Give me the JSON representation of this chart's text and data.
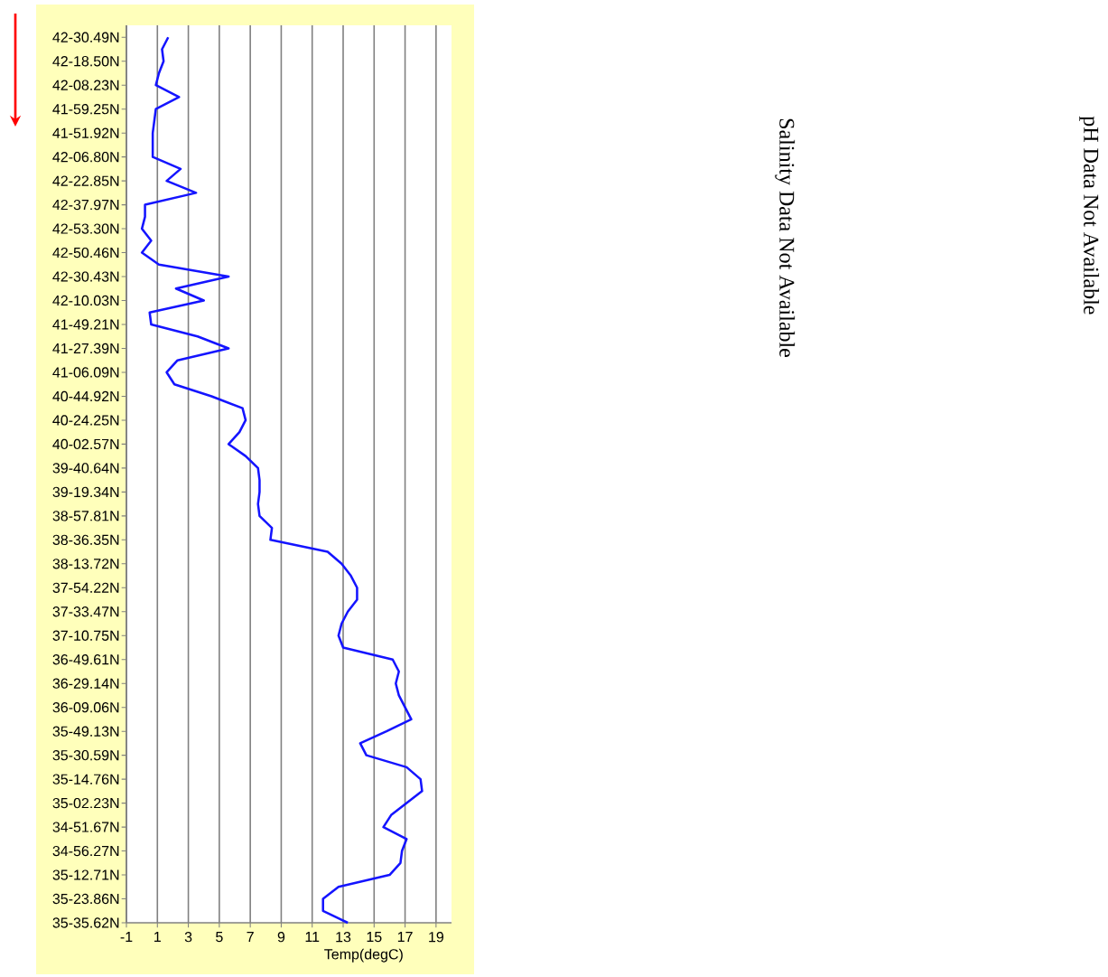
{
  "chart_data": {
    "type": "line",
    "orientation": "horizontal",
    "xlabel": "Temp(degC)",
    "grid": "x",
    "marker": "none",
    "categories": [
      "42-30.49N",
      null,
      "42-18.50N",
      null,
      "42-08.23N",
      null,
      "41-59.25N",
      null,
      "41-51.92N",
      null,
      "42-06.80N",
      null,
      "42-22.85N",
      null,
      "42-37.97N",
      null,
      "42-53.30N",
      null,
      "42-50.46N",
      null,
      "42-30.43N",
      null,
      "42-10.03N",
      null,
      "41-49.21N",
      null,
      "41-27.39N",
      null,
      "41-06.09N",
      null,
      "40-44.92N",
      null,
      "40-24.25N",
      null,
      "40-02.57N",
      null,
      "39-40.64N",
      null,
      "39-19.34N",
      null,
      "38-57.81N",
      null,
      "38-36.35N",
      null,
      "38-13.72N",
      null,
      "37-54.22N",
      null,
      "37-33.47N",
      null,
      "37-10.75N",
      null,
      "36-49.61N",
      null,
      "36-29.14N",
      null,
      "36-09.06N",
      null,
      "35-49.13N",
      null,
      "35-30.59N",
      null,
      "35-14.76N",
      null,
      "35-02.23N",
      null,
      "34-51.67N",
      null,
      "34-56.27N",
      null,
      "35-12.71N",
      null,
      "35-23.86N",
      null,
      "35-35.62N"
    ],
    "series": [
      {
        "color": "#1414ff",
        "values": [
          1.7,
          1.3,
          1.4,
          1.1,
          0.9,
          2.4,
          0.9,
          0.8,
          0.7,
          0.7,
          0.7,
          2.5,
          1.6,
          3.5,
          0.2,
          0.2,
          0.0,
          0.6,
          0.0,
          1.1,
          5.6,
          2.2,
          4.0,
          0.5,
          0.6,
          3.6,
          5.6,
          2.3,
          1.6,
          2.1,
          4.5,
          6.5,
          6.7,
          6.3,
          5.6,
          6.7,
          7.5,
          7.6,
          7.6,
          7.5,
          7.6,
          8.4,
          8.3,
          12.0,
          12.9,
          13.5,
          13.9,
          13.9,
          13.3,
          12.9,
          12.7,
          13.0,
          16.2,
          16.6,
          16.4,
          16.6,
          17.0,
          17.4,
          15.8,
          14.1,
          14.5,
          17.1,
          18.0,
          18.1,
          17.1,
          16.1,
          15.6,
          17.1,
          16.8,
          16.7,
          16.0,
          12.7,
          11.7,
          11.7,
          13.3
        ]
      }
    ],
    "xlim": [
      -1,
      20
    ],
    "xticks": [
      -1,
      1,
      3,
      5,
      7,
      9,
      11,
      13,
      15,
      17,
      19
    ],
    "annotations": [
      "Salinity Data Not Available",
      "pH Data Not Available"
    ]
  }
}
